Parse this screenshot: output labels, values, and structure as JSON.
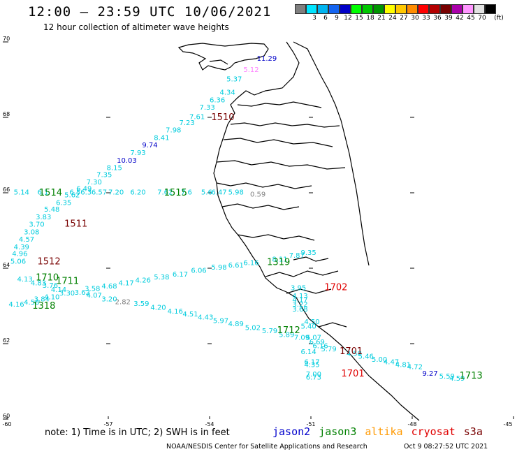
{
  "header": {
    "title": "12:00 – 23:59 UTC 10/06/2021",
    "subtitle": "12 hour collection of altimeter wave heights"
  },
  "legend": {
    "unit": "(ft)",
    "bins": [
      {
        "label": "",
        "color": "#7f7f7f"
      },
      {
        "label": "3",
        "color": "#00e5ff"
      },
      {
        "label": "6",
        "color": "#00b4f0"
      },
      {
        "label": "9",
        "color": "#1464f0"
      },
      {
        "label": "12",
        "color": "#0000c8"
      },
      {
        "label": "15",
        "color": "#00ff00"
      },
      {
        "label": "18",
        "color": "#00c800"
      },
      {
        "label": "21",
        "color": "#009600"
      },
      {
        "label": "24",
        "color": "#ffff00"
      },
      {
        "label": "27",
        "color": "#ffc800"
      },
      {
        "label": "30",
        "color": "#ff8c00"
      },
      {
        "label": "33",
        "color": "#ff0000"
      },
      {
        "label": "36",
        "color": "#b40000"
      },
      {
        "label": "39",
        "color": "#780000"
      },
      {
        "label": "42",
        "color": "#aa00aa"
      },
      {
        "label": "45",
        "color": "#ff96ff"
      },
      {
        "label": "70",
        "color": "#e1e1e1"
      },
      {
        "label": "",
        "color": "#000000"
      }
    ]
  },
  "axes": {
    "lon_ticks": [
      "-60",
      "-57",
      "-54",
      "-51",
      "-48",
      "-45"
    ],
    "lat_ticks": [
      "60",
      "62",
      "64",
      "66",
      "68",
      "70"
    ]
  },
  "colors": {
    "cyan": "#00ccdd",
    "blue": "#0000c8",
    "green": "#008000",
    "darkred": "#780000",
    "red": "#e00000",
    "gray": "#808080",
    "pink": "#ff80ff"
  },
  "wave_labels": [
    {
      "t": "11.29",
      "c": "blue",
      "lon": -52.6,
      "lat": 69.5
    },
    {
      "t": "5.12",
      "c": "pink",
      "lon": -53.0,
      "lat": 69.2
    },
    {
      "t": "5.37",
      "c": "cyan",
      "lon": -53.5,
      "lat": 68.95
    },
    {
      "t": "4.34",
      "c": "cyan",
      "lon": -53.7,
      "lat": 68.6
    },
    {
      "t": "6.36",
      "c": "cyan",
      "lon": -54.0,
      "lat": 68.4
    },
    {
      "t": "7.33",
      "c": "cyan",
      "lon": -54.3,
      "lat": 68.2
    },
    {
      "t": "7.61",
      "c": "cyan",
      "lon": -54.6,
      "lat": 67.95
    },
    {
      "t": "7.23",
      "c": "cyan",
      "lon": -54.9,
      "lat": 67.8
    },
    {
      "t": "7.98",
      "c": "cyan",
      "lon": -55.3,
      "lat": 67.6
    },
    {
      "t": "8.41",
      "c": "cyan",
      "lon": -55.65,
      "lat": 67.4
    },
    {
      "t": "9.74",
      "c": "blue",
      "lon": -56.0,
      "lat": 67.2
    },
    {
      "t": "7.93",
      "c": "cyan",
      "lon": -56.35,
      "lat": 67.0
    },
    {
      "t": "10.03",
      "c": "blue",
      "lon": -56.75,
      "lat": 66.8
    },
    {
      "t": "8.15",
      "c": "cyan",
      "lon": -57.05,
      "lat": 66.6
    },
    {
      "t": "7.35",
      "c": "cyan",
      "lon": -57.35,
      "lat": 66.42
    },
    {
      "t": "7.30",
      "c": "cyan",
      "lon": -57.65,
      "lat": 66.22
    },
    {
      "t": "6.49",
      "c": "cyan",
      "lon": -57.95,
      "lat": 66.05
    },
    {
      "t": "5.14",
      "c": "cyan",
      "lon": -59.8,
      "lat": 65.95
    },
    {
      "t": "6.1",
      "c": "cyan",
      "lon": -59.1,
      "lat": 65.95
    },
    {
      "t": "6.56.3",
      "c": "cyan",
      "lon": -58.15,
      "lat": 65.95
    },
    {
      "t": "6.57",
      "c": "cyan",
      "lon": -57.5,
      "lat": 65.95
    },
    {
      "t": "7.20",
      "c": "cyan",
      "lon": -57.0,
      "lat": 65.95
    },
    {
      "t": "6.20",
      "c": "cyan",
      "lon": -56.35,
      "lat": 65.95
    },
    {
      "t": "7.62",
      "c": "cyan",
      "lon": -55.55,
      "lat": 65.95
    },
    {
      "t": "7.6",
      "c": "cyan",
      "lon": -54.85,
      "lat": 65.95
    },
    {
      "t": "5.6",
      "c": "cyan",
      "lon": -54.25,
      "lat": 65.95
    },
    {
      "t": "6.47",
      "c": "cyan",
      "lon": -53.95,
      "lat": 65.95
    },
    {
      "t": "5.98",
      "c": "cyan",
      "lon": -53.45,
      "lat": 65.95
    },
    {
      "t": "5.62",
      "c": "cyan",
      "lon": -58.3,
      "lat": 65.88
    },
    {
      "t": "0.59",
      "c": "gray",
      "lon": -52.8,
      "lat": 65.9
    },
    {
      "t": "6.35",
      "c": "cyan",
      "lon": -58.55,
      "lat": 65.68
    },
    {
      "t": "5.48",
      "c": "cyan",
      "lon": -58.9,
      "lat": 65.5
    },
    {
      "t": "3.83",
      "c": "cyan",
      "lon": -59.15,
      "lat": 65.3
    },
    {
      "t": "3.70",
      "c": "cyan",
      "lon": -59.35,
      "lat": 65.1
    },
    {
      "t": "3.08",
      "c": "cyan",
      "lon": -59.5,
      "lat": 64.9
    },
    {
      "t": "4.57",
      "c": "cyan",
      "lon": -59.65,
      "lat": 64.7
    },
    {
      "t": "4.39",
      "c": "cyan",
      "lon": -59.8,
      "lat": 64.5
    },
    {
      "t": "4.96",
      "c": "cyan",
      "lon": -59.85,
      "lat": 64.32
    },
    {
      "t": "5.06",
      "c": "cyan",
      "lon": -59.9,
      "lat": 64.12
    },
    {
      "t": "8.11",
      "c": "cyan",
      "lon": -52.15,
      "lat": 64.18
    },
    {
      "t": "7.87",
      "c": "cyan",
      "lon": -51.65,
      "lat": 64.28
    },
    {
      "t": "9.35",
      "c": "cyan",
      "lon": -51.3,
      "lat": 64.35
    },
    {
      "t": "6.16",
      "c": "cyan",
      "lon": -53.0,
      "lat": 64.08
    },
    {
      "t": "6.61",
      "c": "cyan",
      "lon": -53.45,
      "lat": 64.02
    },
    {
      "t": "5.98",
      "c": "cyan",
      "lon": -53.95,
      "lat": 63.96
    },
    {
      "t": "6.06",
      "c": "cyan",
      "lon": -54.55,
      "lat": 63.88
    },
    {
      "t": "6.17",
      "c": "cyan",
      "lon": -55.1,
      "lat": 63.78
    },
    {
      "t": "5.38",
      "c": "cyan",
      "lon": -55.65,
      "lat": 63.7
    },
    {
      "t": "4.26",
      "c": "cyan",
      "lon": -56.2,
      "lat": 63.62
    },
    {
      "t": "4.17",
      "c": "cyan",
      "lon": -56.7,
      "lat": 63.55
    },
    {
      "t": "4.68",
      "c": "cyan",
      "lon": -57.2,
      "lat": 63.46
    },
    {
      "t": "3.58",
      "c": "cyan",
      "lon": -57.7,
      "lat": 63.4
    },
    {
      "t": "4.13",
      "c": "cyan",
      "lon": -59.7,
      "lat": 63.65
    },
    {
      "t": "4.83",
      "c": "cyan",
      "lon": -59.3,
      "lat": 63.55
    },
    {
      "t": "3.76",
      "c": "cyan",
      "lon": -58.95,
      "lat": 63.48
    },
    {
      "t": "4.14",
      "c": "cyan",
      "lon": -58.7,
      "lat": 63.37
    },
    {
      "t": "3.30",
      "c": "cyan",
      "lon": -58.45,
      "lat": 63.28
    },
    {
      "t": "3.62",
      "c": "cyan",
      "lon": -58.0,
      "lat": 63.3
    },
    {
      "t": "4.07",
      "c": "cyan",
      "lon": -57.65,
      "lat": 63.22
    },
    {
      "t": "4.10",
      "c": "cyan",
      "lon": -58.9,
      "lat": 63.18
    },
    {
      "t": "3.84",
      "c": "cyan",
      "lon": -59.2,
      "lat": 63.12
    },
    {
      "t": "4.58",
      "c": "cyan",
      "lon": -59.5,
      "lat": 63.04
    },
    {
      "t": "4.16",
      "c": "cyan",
      "lon": -59.95,
      "lat": 62.98
    },
    {
      "t": "3.20",
      "c": "cyan",
      "lon": -57.2,
      "lat": 63.12
    },
    {
      "t": "2.82",
      "c": "gray",
      "lon": -56.8,
      "lat": 63.05
    },
    {
      "t": "3.59",
      "c": "cyan",
      "lon": -56.25,
      "lat": 63.0
    },
    {
      "t": "4.20",
      "c": "cyan",
      "lon": -55.75,
      "lat": 62.9
    },
    {
      "t": "4.16",
      "c": "cyan",
      "lon": -55.25,
      "lat": 62.8
    },
    {
      "t": "4.51",
      "c": "cyan",
      "lon": -54.8,
      "lat": 62.72
    },
    {
      "t": "4.43",
      "c": "cyan",
      "lon": -54.35,
      "lat": 62.64
    },
    {
      "t": "5.97",
      "c": "cyan",
      "lon": -53.9,
      "lat": 62.55
    },
    {
      "t": "4.89",
      "c": "cyan",
      "lon": -53.45,
      "lat": 62.46
    },
    {
      "t": "5.02",
      "c": "cyan",
      "lon": -52.95,
      "lat": 62.36
    },
    {
      "t": "5.79",
      "c": "cyan",
      "lon": -52.45,
      "lat": 62.28
    },
    {
      "t": "5.89",
      "c": "cyan",
      "lon": -51.95,
      "lat": 62.18
    },
    {
      "t": "7.09",
      "c": "cyan",
      "lon": -51.5,
      "lat": 62.1
    },
    {
      "t": "3.95",
      "c": "cyan",
      "lon": -51.6,
      "lat": 63.42
    },
    {
      "t": "4.13",
      "c": "cyan",
      "lon": -51.55,
      "lat": 63.2
    },
    {
      "t": "4.17",
      "c": "cyan",
      "lon": -51.55,
      "lat": 63.1
    },
    {
      "t": "3.22",
      "c": "cyan",
      "lon": -51.55,
      "lat": 62.98
    },
    {
      "t": "3.68",
      "c": "cyan",
      "lon": -51.55,
      "lat": 62.85
    },
    {
      "t": "4.50",
      "c": "cyan",
      "lon": -51.2,
      "lat": 62.52
    },
    {
      "t": "5.40",
      "c": "cyan",
      "lon": -51.3,
      "lat": 62.4
    },
    {
      "t": "6.07",
      "c": "cyan",
      "lon": -51.15,
      "lat": 62.1
    },
    {
      "t": "6.69",
      "c": "cyan",
      "lon": -51.05,
      "lat": 61.98
    },
    {
      "t": "6.16",
      "c": "cyan",
      "lon": -50.95,
      "lat": 61.88
    },
    {
      "t": "5.79",
      "c": "cyan",
      "lon": -50.7,
      "lat": 61.8
    },
    {
      "t": "6.14",
      "c": "cyan",
      "lon": -51.3,
      "lat": 61.72
    },
    {
      "t": "4.58",
      "c": "cyan",
      "lon": -49.95,
      "lat": 61.68
    },
    {
      "t": "5.46",
      "c": "cyan",
      "lon": -49.6,
      "lat": 61.6
    },
    {
      "t": "5.00",
      "c": "cyan",
      "lon": -49.2,
      "lat": 61.52
    },
    {
      "t": "4.47",
      "c": "cyan",
      "lon": -48.85,
      "lat": 61.45
    },
    {
      "t": "4.81",
      "c": "cyan",
      "lon": -48.5,
      "lat": 61.38
    },
    {
      "t": "4.72",
      "c": "cyan",
      "lon": -48.15,
      "lat": 61.32
    },
    {
      "t": "6.17",
      "c": "cyan",
      "lon": -51.2,
      "lat": 61.45
    },
    {
      "t": "4.35",
      "c": "cyan",
      "lon": -51.2,
      "lat": 61.38
    },
    {
      "t": "7.00",
      "c": "cyan",
      "lon": -51.15,
      "lat": 61.13
    },
    {
      "t": "6.73",
      "c": "cyan",
      "lon": -51.15,
      "lat": 61.05
    },
    {
      "t": "9.27",
      "c": "blue",
      "lon": -47.7,
      "lat": 61.15
    },
    {
      "t": "5.59",
      "c": "cyan",
      "lon": -47.2,
      "lat": 61.07
    },
    {
      "t": "4.59",
      "c": "cyan",
      "lon": -46.9,
      "lat": 61.02
    }
  ],
  "pass_labels": [
    {
      "t": "1510",
      "c": "darkred",
      "lon": -53.95,
      "lat": 67.93
    },
    {
      "t": "1514",
      "c": "green",
      "lon": -59.05,
      "lat": 65.93
    },
    {
      "t": "1515",
      "c": "green",
      "lon": -55.35,
      "lat": 65.93
    },
    {
      "t": "1511",
      "c": "darkred",
      "lon": -58.3,
      "lat": 65.1
    },
    {
      "t": "1512",
      "c": "darkred",
      "lon": -59.1,
      "lat": 64.1
    },
    {
      "t": "1319",
      "c": "green",
      "lon": -52.3,
      "lat": 64.08
    },
    {
      "t": "1710",
      "c": "green",
      "lon": -59.15,
      "lat": 63.68
    },
    {
      "t": "1711",
      "c": "green",
      "lon": -58.55,
      "lat": 63.58
    },
    {
      "t": "1702",
      "c": "red",
      "lon": -50.6,
      "lat": 63.42
    },
    {
      "t": "1318",
      "c": "green",
      "lon": -59.25,
      "lat": 62.93
    },
    {
      "t": "1712",
      "c": "green",
      "lon": -52.0,
      "lat": 62.28
    },
    {
      "t": "1701",
      "c": "darkred",
      "lon": -50.15,
      "lat": 61.72
    },
    {
      "t": "1701",
      "c": "red",
      "lon": -50.1,
      "lat": 61.13
    },
    {
      "t": "1713",
      "c": "green",
      "lon": -46.6,
      "lat": 61.07
    }
  ],
  "footer": {
    "note": "note: 1) Time is in UTC; 2) SWH is in feet",
    "satellites": [
      {
        "name": "jason2",
        "color": "#0000cc"
      },
      {
        "name": "jason3",
        "color": "#008000"
      },
      {
        "name": "altika",
        "color": "#ff9900"
      },
      {
        "name": "cryosat",
        "color": "#e00000"
      },
      {
        "name": "s3a",
        "color": "#780000"
      }
    ],
    "credit": "NOAA/NESDIS Center for Satellite Applications and Research",
    "timestamp": "Oct  9 08:27:52 UTC 2021"
  }
}
